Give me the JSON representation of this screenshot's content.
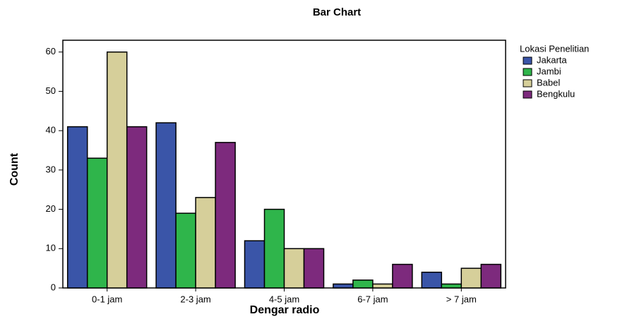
{
  "chart_data": {
    "type": "bar",
    "title": "Bar Chart",
    "x_label": "Dengar radio",
    "y_label": "Count",
    "legend_title": "Lokasi Penelitian",
    "categories": [
      "0-1 jam",
      "2-3 jam",
      "4-5 jam",
      "6-7 jam",
      "> 7 jam"
    ],
    "series": [
      {
        "name": "Jakarta",
        "color": "#3a55a8",
        "values": [
          41,
          42,
          12,
          1,
          4
        ]
      },
      {
        "name": "Jambi",
        "color": "#2fb54b",
        "values": [
          33,
          19,
          20,
          2,
          1
        ]
      },
      {
        "name": "Babel",
        "color": "#d6cf9a",
        "values": [
          60,
          23,
          10,
          1,
          5
        ]
      },
      {
        "name": "Bengkulu",
        "color": "#7d2a7d",
        "values": [
          41,
          37,
          10,
          6,
          6
        ]
      }
    ],
    "ylim": [
      0,
      63
    ],
    "yticks": [
      0,
      10,
      20,
      30,
      40,
      50,
      60
    ],
    "grid": false,
    "legend": "right"
  }
}
